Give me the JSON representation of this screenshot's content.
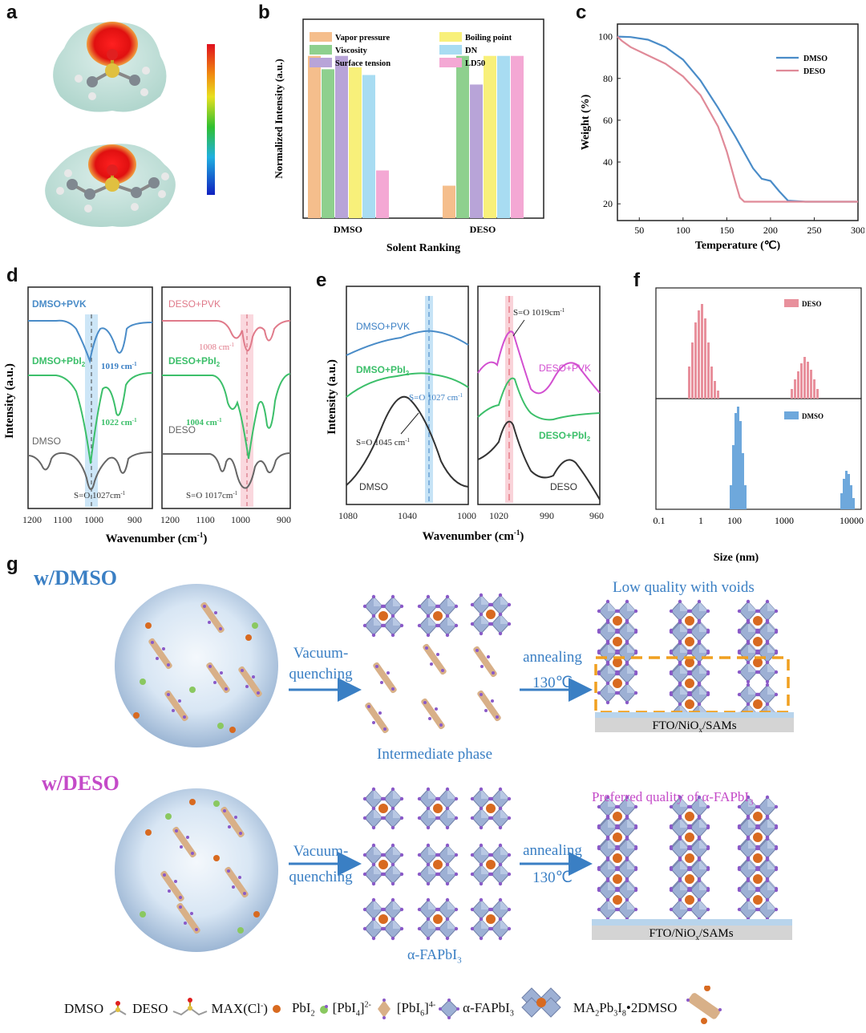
{
  "panels": {
    "a": "a",
    "b": "b",
    "c": "c",
    "d": "d",
    "e": "e",
    "f": "f",
    "g": "g"
  },
  "colors": {
    "dmso_blue": "#4a8cc8",
    "deso_pink": "#e07a8a",
    "pbi2_green": "#3cbf6a",
    "magenta": "#d24fd0",
    "orange_box": "#f0a020",
    "text_blue": "#3a7fc4"
  },
  "chart_data": [
    {
      "panel": "b",
      "type": "bar",
      "xlabel": "Solent Ranking",
      "ylabel": "Normalized Intensity (a.u.)",
      "categories": [
        "DMSO",
        "DESO"
      ],
      "legend": [
        "Vapor pressure",
        "Viscosity",
        "Surface tension",
        "Boiling point",
        "DN",
        "LD50"
      ],
      "series": [
        {
          "name": "Vapor pressure",
          "color": "#f5be8c",
          "values": [
            0.85,
            0.17
          ]
        },
        {
          "name": "Viscosity",
          "color": "#8ed08e",
          "values": [
            0.78,
            0.85
          ]
        },
        {
          "name": "Surface tension",
          "color": "#b8a4d8",
          "values": [
            0.85,
            0.7
          ]
        },
        {
          "name": "Boiling point",
          "color": "#f8f07a",
          "values": [
            0.79,
            0.85
          ]
        },
        {
          "name": "DN",
          "color": "#a8dcf2",
          "values": [
            0.75,
            0.85
          ]
        },
        {
          "name": "LD50",
          "color": "#f4a8d4",
          "values": [
            0.25,
            0.85
          ]
        }
      ]
    },
    {
      "panel": "c",
      "type": "line",
      "xlabel": "Temperature (℃)",
      "ylabel": "Weight (%)",
      "xlim": [
        25,
        300
      ],
      "ylim": [
        12,
        106
      ],
      "xticks": [
        "50",
        "100",
        "150",
        "200",
        "250",
        "300"
      ],
      "yticks": [
        "20",
        "40",
        "60",
        "80",
        "100"
      ],
      "series": [
        {
          "name": "DMSO",
          "color": "#4a8cc8",
          "x": [
            25,
            40,
            60,
            80,
            100,
            120,
            140,
            160,
            180,
            190,
            200,
            210,
            220,
            240,
            260,
            280,
            300
          ],
          "y": [
            100,
            99.8,
            98.5,
            95,
            89,
            79,
            66,
            52,
            37,
            32,
            31,
            26,
            21.5,
            21,
            21,
            21,
            21
          ]
        },
        {
          "name": "DESO",
          "color": "#e08a98",
          "x": [
            25,
            30,
            40,
            60,
            80,
            100,
            120,
            140,
            150,
            160,
            165,
            170,
            180,
            200,
            250,
            300
          ],
          "y": [
            100,
            98,
            95,
            91,
            87,
            81,
            72,
            57,
            45,
            30,
            23,
            21,
            21,
            21,
            21,
            21
          ]
        }
      ]
    },
    {
      "panel": "d-left",
      "type": "line",
      "xlabel": "Wavenumber (cm-1)",
      "ylabel": "Intensity (a.u.)",
      "xticks": [
        "1200",
        "1100",
        "1000",
        "900"
      ],
      "series": [
        {
          "name": "DMSO+PVK",
          "color": "#4a8cc8"
        },
        {
          "name": "DMSO+PbI2",
          "color": "#3cbf6a"
        },
        {
          "name": "DMSO",
          "color": "#555555"
        }
      ],
      "annotations": [
        "1019 cm-1",
        "1022 cm-1",
        "S=O 1027cm-1"
      ]
    },
    {
      "panel": "d-right",
      "type": "line",
      "xticks": [
        "1200",
        "1100",
        "1000",
        "900"
      ],
      "series": [
        {
          "name": "DESO+PVK",
          "color": "#e07a8a"
        },
        {
          "name": "DESO+PbI2",
          "color": "#3cbf6a"
        },
        {
          "name": "DESO",
          "color": "#555555"
        }
      ],
      "annotations": [
        "1008 cm-1",
        "1004 cm-1",
        "S=O 1017cm-1"
      ]
    },
    {
      "panel": "e",
      "type": "line",
      "xlabel": "Wavenumber (cm-1)",
      "ylabel": "Intensity (a.u.)",
      "xticks_left": [
        "1080",
        "1040",
        "1000"
      ],
      "xticks_right": [
        "1020",
        "990",
        "960"
      ],
      "series": [
        {
          "name": "DMSO+PVK",
          "color": "#4a8cc8"
        },
        {
          "name": "DMSO+PbI2",
          "color": "#3cbf6a"
        },
        {
          "name": "DMSO",
          "color": "#333333"
        },
        {
          "name": "DESO+PVK",
          "color": "#d24fd0"
        },
        {
          "name": "DESO+PbI2",
          "color": "#3cbf6a"
        },
        {
          "name": "DESO",
          "color": "#333333"
        }
      ],
      "annotations": [
        "S=O 1027 cm-1",
        "S=O 1045 cm-1",
        "S=O 1019cm-1"
      ]
    },
    {
      "panel": "f",
      "type": "bar",
      "xlabel": "Size (nm)",
      "xticks": [
        "0.1",
        "1",
        "100",
        "1000",
        "10000"
      ],
      "series": [
        {
          "name": "DESO",
          "color": "#e8909c"
        },
        {
          "name": "DMSO",
          "color": "#6ea8dc"
        }
      ]
    }
  ],
  "labels": {
    "d_left_top": "DMSO+PVK",
    "d_left_mid": "DMSO+PbI",
    "d_left_bot": "DMSO",
    "d_left_a1": "1019 cm",
    "d_left_a2": "1022 cm",
    "d_left_a3": "S=O 1027cm",
    "d_right_top": "DESO+PVK",
    "d_right_mid": "DESO+PbI",
    "d_right_bot": "DESO",
    "d_right_a1": "1008 cm",
    "d_right_a2": "1004 cm",
    "d_right_a3": "S=O 1017cm",
    "e_l_top": "DMSO+PVK",
    "e_l_mid": "DMSO+PbI",
    "e_l_bot": "DMSO",
    "e_a1": "S=O 1027 cm",
    "e_a2": "S=O 1045 cm",
    "e_a3": "S=O 1019cm",
    "e_r_top": "DESO+PVK",
    "e_r_mid": "DESO+PbI",
    "e_r_bot": "DESO",
    "f_top_legend": "DESO",
    "f_bot_legend": "DMSO"
  },
  "scheme": {
    "w_dmso": "w/DMSO",
    "w_deso": "w/DESO",
    "vacuum_1": "Vacuum-",
    "vacuum_2": "quenching",
    "annealing": "annealing",
    "temp": "130℃",
    "low_quality": "Low quality with voids",
    "intermediate": "Intermediate phase",
    "preferred": "Preferred quality of α-FAPbI",
    "alpha_fapbi3": "α-FAPbI",
    "substrate": "FTO/NiO",
    "substrate_tail": "/SAMs"
  },
  "legend": {
    "dmso": "DMSO",
    "deso": "DESO",
    "max": "MAX(Cl",
    "pbi2": "PbI",
    "pbi4": "[PbI",
    "pbi6": "[PbI",
    "alpha": "α-FAPbI",
    "ma": "MA",
    "ma_tail": "Pb",
    "ma_tail2": "I",
    "ma_tail3": "•2DMSO"
  }
}
